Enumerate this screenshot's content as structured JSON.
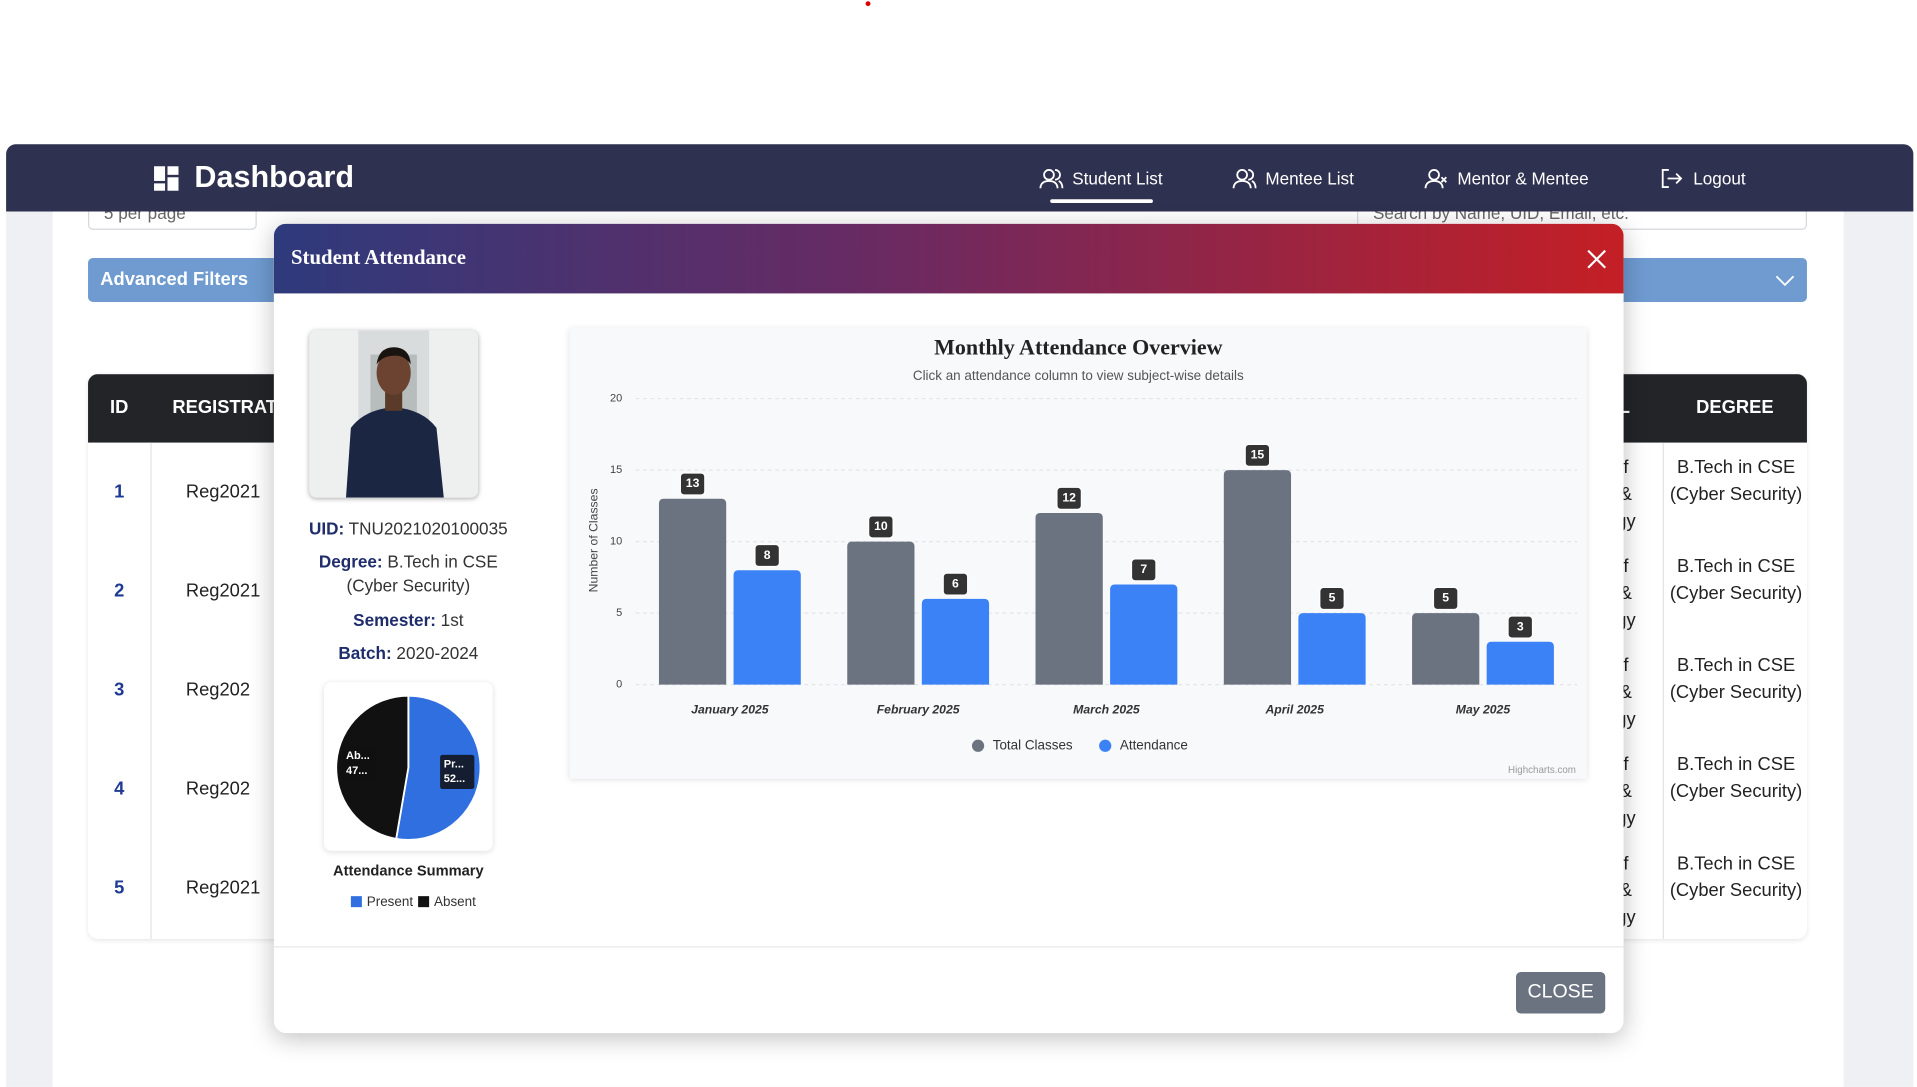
{
  "nav": {
    "brand": "Dashboard",
    "items": [
      "Student List",
      "Mentee List",
      "Mentor & Mentee",
      "Logout"
    ]
  },
  "page": {
    "per_page": "5 per page",
    "search_placeholder": "Search by Name, UID, Email, etc.",
    "advanced_filters": "Advanced Filters",
    "table": {
      "headers": [
        "ID",
        "REGISTRAT",
        "L",
        "DEGREE"
      ],
      "rows": [
        [
          "1",
          "Reg2021",
          "f\n&\ngy",
          "B.Tech in CSE (Cyber Security)"
        ],
        [
          "2",
          "Reg2021",
          "f\n&\ngy",
          "B.Tech in CSE (Cyber Security)"
        ],
        [
          "3",
          "Reg202",
          "f\n&\ngy",
          "B.Tech in CSE (Cyber Security)"
        ],
        [
          "4",
          "Reg202",
          "f\n&\ngy",
          "B.Tech in CSE (Cyber Security)"
        ],
        [
          "5",
          "Reg2021",
          "f\n&\ngy",
          "B.Tech in CSE (Cyber Security)"
        ]
      ]
    }
  },
  "modal": {
    "title": "Student Attendance",
    "uid_label": "UID:",
    "uid": "TNU2021020100035",
    "degree_label": "Degree:",
    "degree": "B.Tech in CSE (Cyber Security)",
    "semester_label": "Semester:",
    "semester": "1st",
    "batch_label": "Batch:",
    "batch": "2020-2024",
    "close": "CLOSE"
  },
  "chart_data": [
    {
      "type": "bar",
      "title": "Monthly Attendance Overview",
      "subtitle": "Click an attendance column to view subject-wise details",
      "y_label": "Number of Classes",
      "categories": [
        "January 2025",
        "February 2025",
        "March 2025",
        "April 2025",
        "May 2025"
      ],
      "series": [
        {
          "name": "Total Classes",
          "color": "#6b7280",
          "values": [
            13,
            10,
            12,
            15,
            5
          ]
        },
        {
          "name": "Attendance",
          "color": "#3b82f6",
          "values": [
            8,
            6,
            7,
            5,
            3
          ]
        }
      ],
      "ylim": [
        0,
        20
      ],
      "yticks": [
        0,
        5,
        10,
        15,
        20
      ],
      "grid": true,
      "credits": "Highcharts.com"
    },
    {
      "type": "pie",
      "title": "Attendance Summary",
      "categories": [
        "Present",
        "Absent"
      ],
      "values": [
        52.7,
        47.3
      ],
      "colors": [
        "#2f6fe0",
        "#111111"
      ],
      "label_names": [
        "Pr...",
        "Ab..."
      ],
      "value_labels": [
        "52...",
        "47..."
      ]
    }
  ]
}
